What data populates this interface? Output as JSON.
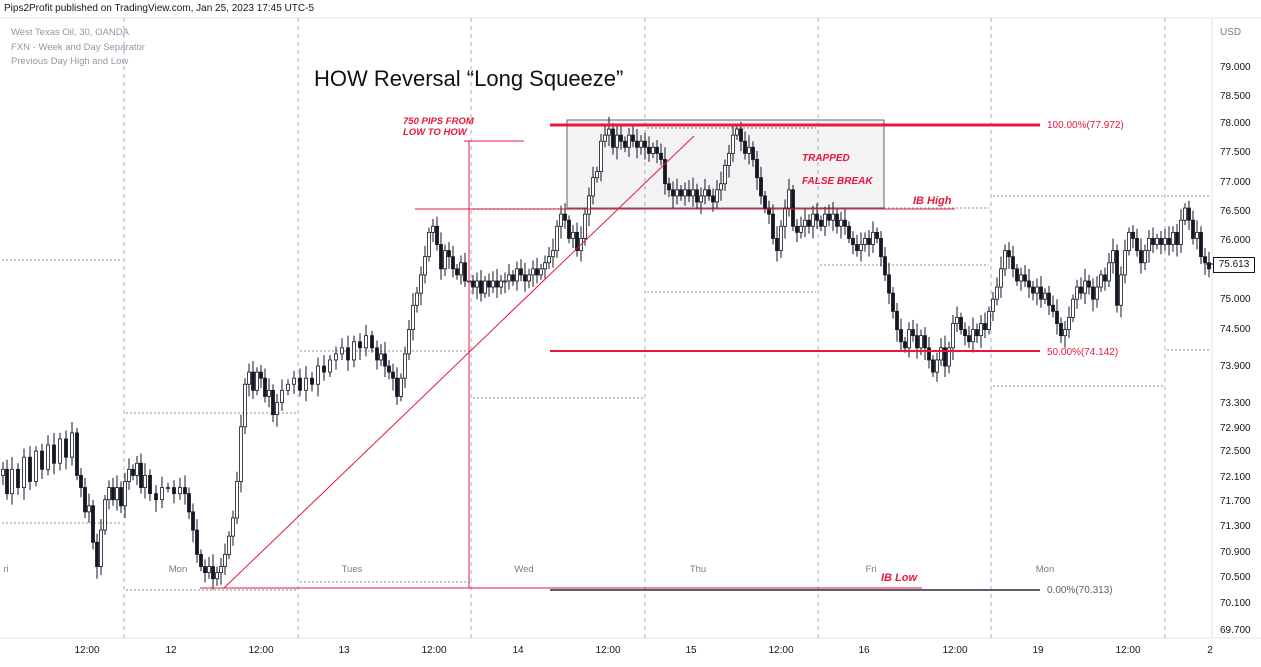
{
  "header": {
    "publisher": "Pips2Profit published on TradingView.com, Jan 25, 2023 17:45 UTC-5"
  },
  "legend": {
    "symbol": "West Texas Oil, 30, OANDA",
    "indicator1": "FXN - Week and Day Separator",
    "indicator2": "Previous Day High and Low"
  },
  "last_price": "75.613",
  "chart_data": {
    "type": "candlestick",
    "title": "HOW Reversal “Long Squeeze”",
    "currency": "USD",
    "y_ticks": [
      "79.000",
      "78.500",
      "78.000",
      "77.500",
      "77.000",
      "76.500",
      "76.000",
      "75.500",
      "75.000",
      "74.500",
      "73.900",
      "73.300",
      "72.900",
      "72.500",
      "72.100",
      "71.700",
      "71.300",
      "70.900",
      "70.500",
      "70.100",
      "69.700"
    ],
    "x_ticks": [
      "12:00",
      "12",
      "12:00",
      "13",
      "12:00",
      "14",
      "12:00",
      "15",
      "12:00",
      "16",
      "12:00",
      "19",
      "12:00",
      "2"
    ],
    "day_labels": [
      "ri",
      "Mon",
      "Tues",
      "Wed",
      "Thu",
      "Fri",
      "Mon"
    ],
    "price_path": [
      [
        0,
        72.2
      ],
      [
        4,
        72.3
      ],
      [
        8,
        71.9
      ],
      [
        14,
        72.3
      ],
      [
        20,
        72.0
      ],
      [
        26,
        72.5
      ],
      [
        32,
        72.1
      ],
      [
        38,
        72.6
      ],
      [
        44,
        72.3
      ],
      [
        50,
        72.7
      ],
      [
        56,
        72.4
      ],
      [
        62,
        72.8
      ],
      [
        68,
        72.5
      ],
      [
        74,
        72.9
      ],
      [
        78,
        72.2
      ],
      [
        82,
        72.0
      ],
      [
        86,
        71.6
      ],
      [
        90,
        71.7
      ],
      [
        94,
        71.1
      ],
      [
        98,
        70.7
      ],
      [
        102,
        71.3
      ],
      [
        106,
        71.8
      ],
      [
        110,
        72.0
      ],
      [
        114,
        71.8
      ],
      [
        118,
        72.0
      ],
      [
        122,
        71.7
      ],
      [
        126,
        72.1
      ],
      [
        130,
        72.3
      ],
      [
        134,
        72.2
      ],
      [
        138,
        72.4
      ],
      [
        142,
        72.0
      ],
      [
        146,
        72.2
      ],
      [
        152,
        71.9
      ],
      [
        158,
        71.8
      ],
      [
        164,
        72.0
      ],
      [
        170,
        72.0
      ],
      [
        176,
        71.9
      ],
      [
        182,
        72.0
      ],
      [
        186,
        71.9
      ],
      [
        190,
        71.6
      ],
      [
        194,
        71.3
      ],
      [
        198,
        70.9
      ],
      [
        202,
        70.7
      ],
      [
        206,
        70.6
      ],
      [
        210,
        70.7
      ],
      [
        214,
        70.5
      ],
      [
        218,
        70.6
      ],
      [
        222,
        70.7
      ],
      [
        226,
        70.9
      ],
      [
        230,
        71.2
      ],
      [
        234,
        71.5
      ],
      [
        238,
        72.1
      ],
      [
        242,
        73.0
      ],
      [
        246,
        73.7
      ],
      [
        250,
        73.9
      ],
      [
        254,
        73.6
      ],
      [
        258,
        73.9
      ],
      [
        262,
        73.8
      ],
      [
        266,
        73.5
      ],
      [
        270,
        73.6
      ],
      [
        274,
        73.2
      ],
      [
        278,
        73.4
      ],
      [
        284,
        73.6
      ],
      [
        290,
        73.7
      ],
      [
        296,
        73.8
      ],
      [
        302,
        73.6
      ],
      [
        308,
        73.8
      ],
      [
        314,
        73.7
      ],
      [
        320,
        74.0
      ],
      [
        326,
        73.9
      ],
      [
        332,
        74.1
      ],
      [
        338,
        74.2
      ],
      [
        344,
        74.3
      ],
      [
        350,
        74.1
      ],
      [
        356,
        74.4
      ],
      [
        362,
        74.3
      ],
      [
        368,
        74.5
      ],
      [
        374,
        74.3
      ],
      [
        378,
        74.1
      ],
      [
        382,
        74.2
      ],
      [
        386,
        74.0
      ],
      [
        390,
        73.9
      ],
      [
        394,
        73.8
      ],
      [
        398,
        73.5
      ],
      [
        402,
        73.8
      ],
      [
        406,
        74.2
      ],
      [
        410,
        74.6
      ],
      [
        414,
        75.0
      ],
      [
        418,
        75.2
      ],
      [
        422,
        75.5
      ],
      [
        426,
        75.8
      ],
      [
        430,
        76.2
      ],
      [
        434,
        76.3
      ],
      [
        438,
        76.0
      ],
      [
        442,
        75.6
      ],
      [
        446,
        75.9
      ],
      [
        450,
        75.8
      ],
      [
        454,
        75.6
      ],
      [
        458,
        75.5
      ],
      [
        462,
        75.7
      ],
      [
        466,
        75.4
      ],
      [
        470,
        75.4
      ],
      [
        474,
        75.3
      ],
      [
        478,
        75.4
      ],
      [
        482,
        75.2
      ],
      [
        486,
        75.4
      ],
      [
        490,
        75.3
      ],
      [
        494,
        75.4
      ],
      [
        498,
        75.3
      ],
      [
        502,
        75.4
      ],
      [
        506,
        75.4
      ],
      [
        510,
        75.5
      ],
      [
        514,
        75.4
      ],
      [
        518,
        75.6
      ],
      [
        522,
        75.5
      ],
      [
        526,
        75.4
      ],
      [
        530,
        75.5
      ],
      [
        534,
        75.6
      ],
      [
        538,
        75.5
      ],
      [
        542,
        75.6
      ],
      [
        546,
        75.7
      ],
      [
        550,
        75.8
      ],
      [
        554,
        75.9
      ],
      [
        558,
        76.3
      ],
      [
        562,
        76.5
      ],
      [
        566,
        76.4
      ],
      [
        570,
        76.1
      ],
      [
        574,
        76.2
      ],
      [
        578,
        75.9
      ],
      [
        582,
        76.1
      ],
      [
        586,
        76.5
      ],
      [
        590,
        76.8
      ],
      [
        594,
        77.1
      ],
      [
        598,
        77.2
      ],
      [
        602,
        77.7
      ],
      [
        606,
        77.8
      ],
      [
        610,
        77.9
      ],
      [
        614,
        77.6
      ],
      [
        618,
        77.8
      ],
      [
        622,
        77.7
      ],
      [
        626,
        77.6
      ],
      [
        630,
        77.8
      ],
      [
        634,
        77.7
      ],
      [
        638,
        77.6
      ],
      [
        642,
        77.7
      ],
      [
        646,
        77.6
      ],
      [
        650,
        77.5
      ],
      [
        654,
        77.6
      ],
      [
        658,
        77.5
      ],
      [
        662,
        77.4
      ],
      [
        666,
        77.0
      ],
      [
        670,
        76.9
      ],
      [
        674,
        76.8
      ],
      [
        678,
        76.9
      ],
      [
        682,
        76.8
      ],
      [
        686,
        76.9
      ],
      [
        690,
        76.8
      ],
      [
        694,
        76.9
      ],
      [
        698,
        76.7
      ],
      [
        702,
        76.8
      ],
      [
        706,
        76.9
      ],
      [
        710,
        76.8
      ],
      [
        714,
        76.7
      ],
      [
        718,
        76.9
      ],
      [
        722,
        77.0
      ],
      [
        726,
        77.3
      ],
      [
        730,
        77.5
      ],
      [
        734,
        77.8
      ],
      [
        738,
        77.9
      ],
      [
        742,
        77.7
      ],
      [
        746,
        77.5
      ],
      [
        750,
        77.6
      ],
      [
        754,
        77.4
      ],
      [
        758,
        77.1
      ],
      [
        762,
        76.8
      ],
      [
        766,
        76.6
      ],
      [
        770,
        76.5
      ],
      [
        774,
        76.1
      ],
      [
        778,
        75.9
      ],
      [
        782,
        76.3
      ],
      [
        786,
        76.6
      ],
      [
        790,
        76.9
      ],
      [
        794,
        76.3
      ],
      [
        798,
        76.2
      ],
      [
        802,
        76.3
      ],
      [
        806,
        76.4
      ],
      [
        810,
        76.3
      ],
      [
        814,
        76.5
      ],
      [
        818,
        76.4
      ],
      [
        822,
        76.3
      ],
      [
        826,
        76.5
      ],
      [
        830,
        76.4
      ],
      [
        834,
        76.5
      ],
      [
        838,
        76.3
      ],
      [
        842,
        76.4
      ],
      [
        846,
        76.3
      ],
      [
        850,
        76.1
      ],
      [
        854,
        76.0
      ],
      [
        858,
        75.9
      ],
      [
        862,
        76.0
      ],
      [
        866,
        76.1
      ],
      [
        870,
        76.0
      ],
      [
        874,
        76.2
      ],
      [
        878,
        76.1
      ],
      [
        882,
        75.8
      ],
      [
        886,
        75.5
      ],
      [
        890,
        75.2
      ],
      [
        894,
        74.9
      ],
      [
        898,
        74.6
      ],
      [
        902,
        74.4
      ],
      [
        906,
        74.3
      ],
      [
        910,
        74.6
      ],
      [
        914,
        74.5
      ],
      [
        918,
        74.3
      ],
      [
        922,
        74.5
      ],
      [
        926,
        74.3
      ],
      [
        930,
        74.1
      ],
      [
        934,
        73.9
      ],
      [
        938,
        74.1
      ],
      [
        942,
        74.3
      ],
      [
        946,
        74.0
      ],
      [
        950,
        74.3
      ],
      [
        954,
        74.7
      ],
      [
        958,
        74.8
      ],
      [
        962,
        74.6
      ],
      [
        966,
        74.5
      ],
      [
        970,
        74.4
      ],
      [
        974,
        74.6
      ],
      [
        978,
        74.5
      ],
      [
        982,
        74.7
      ],
      [
        986,
        74.6
      ],
      [
        990,
        74.9
      ],
      [
        994,
        75.1
      ],
      [
        998,
        75.3
      ],
      [
        1002,
        75.6
      ],
      [
        1006,
        75.9
      ],
      [
        1010,
        75.8
      ],
      [
        1014,
        75.6
      ],
      [
        1018,
        75.4
      ],
      [
        1022,
        75.5
      ],
      [
        1026,
        75.4
      ],
      [
        1030,
        75.3
      ],
      [
        1034,
        75.2
      ],
      [
        1038,
        75.3
      ],
      [
        1042,
        75.1
      ],
      [
        1046,
        75.2
      ],
      [
        1050,
        75.0
      ],
      [
        1054,
        74.9
      ],
      [
        1058,
        74.7
      ],
      [
        1062,
        74.5
      ],
      [
        1066,
        74.6
      ],
      [
        1070,
        74.8
      ],
      [
        1074,
        75.1
      ],
      [
        1078,
        75.3
      ],
      [
        1082,
        75.2
      ],
      [
        1086,
        75.4
      ],
      [
        1090,
        75.3
      ],
      [
        1094,
        75.1
      ],
      [
        1098,
        75.3
      ],
      [
        1102,
        75.5
      ],
      [
        1106,
        75.4
      ],
      [
        1110,
        75.7
      ],
      [
        1114,
        75.9
      ],
      [
        1118,
        75.0
      ],
      [
        1122,
        75.5
      ],
      [
        1126,
        75.9
      ],
      [
        1130,
        76.2
      ],
      [
        1134,
        76.1
      ],
      [
        1138,
        75.9
      ],
      [
        1142,
        75.7
      ],
      [
        1146,
        75.9
      ],
      [
        1150,
        76.1
      ],
      [
        1154,
        76.0
      ],
      [
        1158,
        76.1
      ],
      [
        1162,
        76.0
      ],
      [
        1166,
        76.1
      ],
      [
        1170,
        76.0
      ],
      [
        1174,
        76.2
      ],
      [
        1178,
        76.0
      ],
      [
        1182,
        76.4
      ],
      [
        1186,
        76.6
      ],
      [
        1190,
        76.4
      ],
      [
        1194,
        76.1
      ],
      [
        1198,
        76.2
      ],
      [
        1202,
        75.8
      ],
      [
        1206,
        75.7
      ],
      [
        1210,
        75.6
      ]
    ],
    "annotations": {
      "fib_100": "100.00%(77.972)",
      "fib_50": "50.00%(74.142)",
      "fib_0": "0.00%(70.313)",
      "ib_high": "IB High",
      "ib_low": "IB Low",
      "trapped": "TRAPPED",
      "false_break": "FALSE BREAK",
      "pips_line1": "750 PIPS FROM",
      "pips_line2": "LOW TO HOW"
    },
    "colors": {
      "up": "#131722",
      "down": "#131722",
      "annotation": "#e8173c",
      "fib": "#e8173c",
      "fib0": "#5d606b",
      "grid": "#9db2d1",
      "prevday": "#b0b3b8"
    }
  }
}
